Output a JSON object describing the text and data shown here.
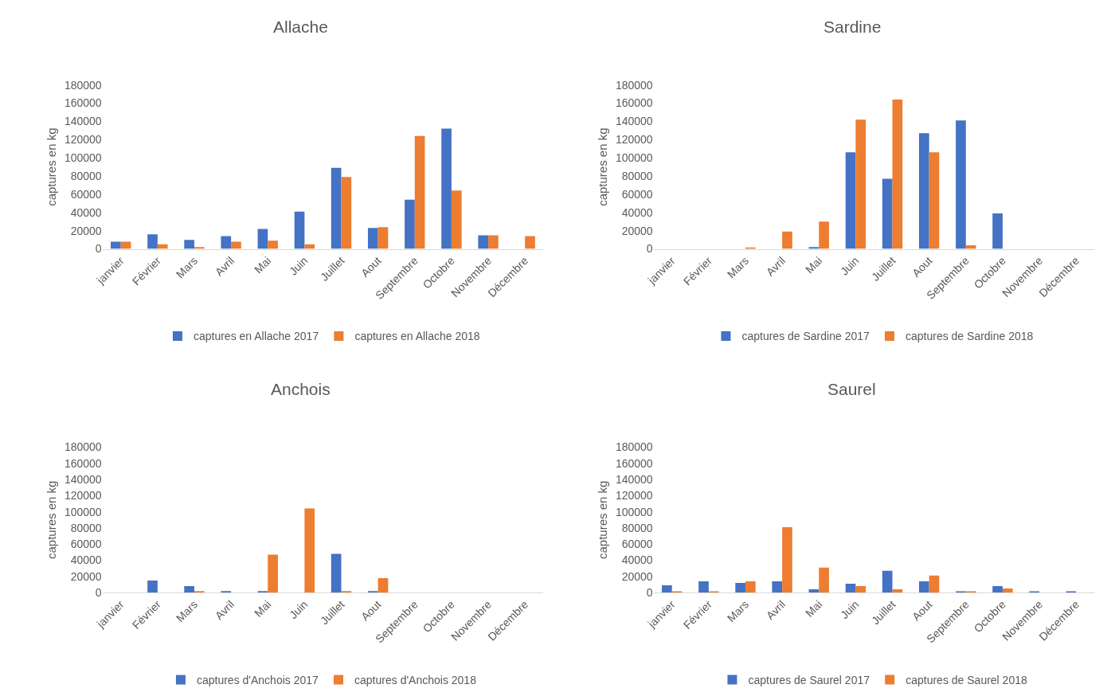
{
  "chart_data": [
    {
      "type": "bar",
      "title": "Allache",
      "ylabel": "captures en kg",
      "categories": [
        "janvier",
        "Février",
        "Mars",
        "Avril",
        "Mai",
        "Juin",
        "Juillet",
        "Aout",
        "Septembre",
        "Octobre",
        "Novembre",
        "Décembre"
      ],
      "ylim": [
        0,
        180000
      ],
      "yticks": [
        0,
        20000,
        40000,
        60000,
        80000,
        100000,
        120000,
        140000,
        160000,
        180000
      ],
      "grid": false,
      "legend": "bottom",
      "series": [
        {
          "name": "captures en Allache 2017",
          "color": "#4472c4",
          "values": [
            8000,
            16000,
            10000,
            14000,
            22000,
            41000,
            89000,
            23000,
            54000,
            132000,
            15000,
            0
          ]
        },
        {
          "name": "captures en Allache 2018",
          "color": "#ed7d31",
          "values": [
            8000,
            5000,
            2000,
            8000,
            9000,
            5000,
            79000,
            24000,
            124000,
            64000,
            15000,
            14000
          ]
        }
      ]
    },
    {
      "type": "bar",
      "title": "Sardine",
      "ylabel": "captures en kg",
      "categories": [
        "janvier",
        "Février",
        "Mars",
        "Avril",
        "Mai",
        "Juin",
        "Juillet",
        "Aout",
        "Septembre",
        "Octobre",
        "Novembre",
        "Décembre"
      ],
      "ylim": [
        0,
        180000
      ],
      "yticks": [
        0,
        20000,
        40000,
        60000,
        80000,
        100000,
        120000,
        140000,
        160000,
        180000
      ],
      "grid": false,
      "legend": "bottom",
      "series": [
        {
          "name": "captures de Sardine 2017",
          "color": "#4472c4",
          "values": [
            0,
            0,
            0,
            0,
            2000,
            106000,
            77000,
            127000,
            141000,
            39000,
            0,
            0
          ]
        },
        {
          "name": "captures de Sardine 2018",
          "color": "#ed7d31",
          "values": [
            0,
            0,
            1000,
            19000,
            30000,
            142000,
            164000,
            106000,
            4000,
            0,
            0,
            0
          ]
        }
      ]
    },
    {
      "type": "bar",
      "title": "Anchois",
      "ylabel": "captures en kg",
      "categories": [
        "janvier",
        "Février",
        "Mars",
        "Avril",
        "Mai",
        "Juin",
        "Juillet",
        "Aout",
        "Septembre",
        "Octobre",
        "Novembre",
        "Décembre"
      ],
      "ylim": [
        0,
        180000
      ],
      "yticks": [
        0,
        20000,
        40000,
        60000,
        80000,
        100000,
        120000,
        140000,
        160000,
        180000
      ],
      "grid": false,
      "legend": "bottom",
      "series": [
        {
          "name": "captures d'Anchois 2017",
          "color": "#4472c4",
          "values": [
            0,
            15000,
            8000,
            2000,
            2000,
            0,
            48000,
            2000,
            0,
            0,
            0,
            0
          ]
        },
        {
          "name": "captures d'Anchois 2018",
          "color": "#ed7d31",
          "values": [
            0,
            0,
            2000,
            0,
            47000,
            104000,
            2000,
            18000,
            0,
            0,
            0,
            0
          ]
        }
      ]
    },
    {
      "type": "bar",
      "title": "Saurel",
      "ylabel": "captures en kg",
      "categories": [
        "janvier",
        "Février",
        "Mars",
        "Avril",
        "Mai",
        "Juin",
        "Juillet",
        "Aout",
        "Septembre",
        "Octobre",
        "Novembre",
        "Décembre"
      ],
      "ylim": [
        0,
        180000
      ],
      "yticks": [
        0,
        20000,
        40000,
        60000,
        80000,
        100000,
        120000,
        140000,
        160000,
        180000
      ],
      "grid": false,
      "legend": "bottom",
      "series": [
        {
          "name": "captures de Saurel 2017",
          "color": "#4472c4",
          "values": [
            9000,
            14000,
            12000,
            14000,
            4000,
            11000,
            27000,
            14000,
            1500,
            8000,
            1500,
            1500
          ]
        },
        {
          "name": "captures de Saurel 2018",
          "color": "#ed7d31",
          "values": [
            1500,
            1500,
            14000,
            81000,
            31000,
            8000,
            4000,
            21000,
            1500,
            5000,
            0,
            0
          ]
        }
      ]
    }
  ]
}
